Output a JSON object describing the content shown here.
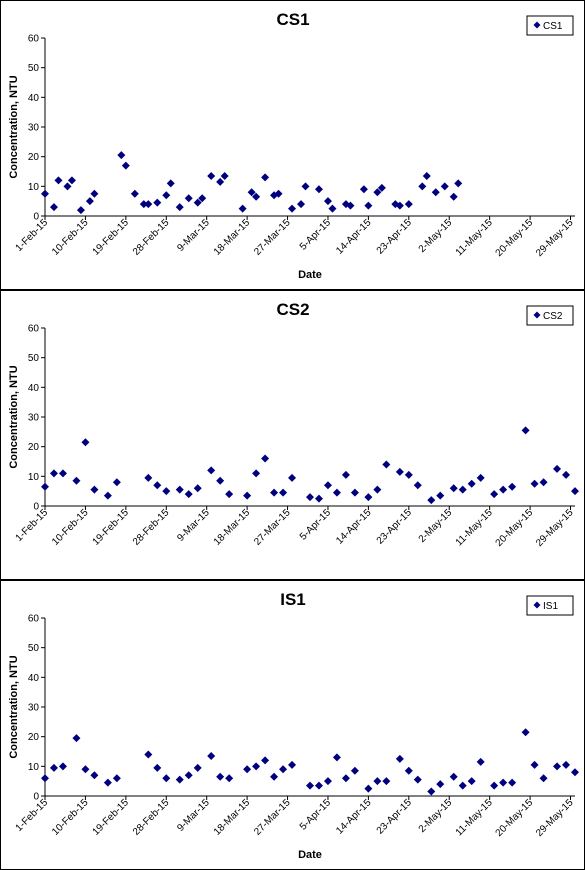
{
  "chart_data": [
    {
      "type": "scatter",
      "title": "CS1",
      "xlabel": "Date",
      "ylabel": "Concentration, NTU",
      "ylim": [
        0,
        60
      ],
      "yticks": [
        0,
        10,
        20,
        30,
        40,
        50,
        60
      ],
      "xlim": [
        "2015-02-01",
        "2015-05-30"
      ],
      "xticks": [
        "1-Feb-15",
        "10-Feb-15",
        "19-Feb-15",
        "28-Feb-15",
        "9-Mar-15",
        "18-Mar-15",
        "27-Mar-15",
        "5-Apr-15",
        "14-Apr-15",
        "23-Apr-15",
        "2-May-15",
        "11-May-15",
        "20-May-15",
        "29-May-15"
      ],
      "grid": false,
      "legend_position": "top-right",
      "marker_color": "#00007f",
      "series": [
        {
          "name": "CS1",
          "points": [
            [
              "2015-02-01",
              7.5
            ],
            [
              "2015-02-03",
              3
            ],
            [
              "2015-02-04",
              12
            ],
            [
              "2015-02-06",
              10
            ],
            [
              "2015-02-07",
              12
            ],
            [
              "2015-02-09",
              2
            ],
            [
              "2015-02-11",
              5
            ],
            [
              "2015-02-12",
              7.5
            ],
            [
              "2015-02-18",
              20.5
            ],
            [
              "2015-02-19",
              17
            ],
            [
              "2015-02-21",
              7.5
            ],
            [
              "2015-02-23",
              4
            ],
            [
              "2015-02-24",
              4
            ],
            [
              "2015-02-26",
              4.5
            ],
            [
              "2015-02-28",
              7
            ],
            [
              "2015-03-01",
              11
            ],
            [
              "2015-03-03",
              3
            ],
            [
              "2015-03-05",
              6
            ],
            [
              "2015-03-07",
              4.5
            ],
            [
              "2015-03-08",
              6
            ],
            [
              "2015-03-10",
              13.5
            ],
            [
              "2015-03-12",
              11.5
            ],
            [
              "2015-03-13",
              13.5
            ],
            [
              "2015-03-17",
              2.5
            ],
            [
              "2015-03-19",
              8
            ],
            [
              "2015-03-20",
              6.5
            ],
            [
              "2015-03-22",
              13
            ],
            [
              "2015-03-24",
              7
            ],
            [
              "2015-03-25",
              7.5
            ],
            [
              "2015-03-28",
              2.5
            ],
            [
              "2015-03-30",
              4
            ],
            [
              "2015-03-31",
              10
            ],
            [
              "2015-04-03",
              9
            ],
            [
              "2015-04-05",
              5
            ],
            [
              "2015-04-06",
              2.5
            ],
            [
              "2015-04-09",
              4
            ],
            [
              "2015-04-10",
              3.5
            ],
            [
              "2015-04-13",
              9
            ],
            [
              "2015-04-14",
              3.5
            ],
            [
              "2015-04-16",
              8
            ],
            [
              "2015-04-17",
              9.5
            ],
            [
              "2015-04-20",
              4
            ],
            [
              "2015-04-21",
              3.5
            ],
            [
              "2015-04-23",
              4
            ],
            [
              "2015-04-26",
              10
            ],
            [
              "2015-04-27",
              13.5
            ],
            [
              "2015-04-29",
              8
            ],
            [
              "2015-05-01",
              10
            ],
            [
              "2015-05-03",
              6.5
            ],
            [
              "2015-05-04",
              11
            ]
          ]
        }
      ]
    },
    {
      "type": "scatter",
      "title": "CS2",
      "xlabel": "",
      "ylabel": "Concentration, NTU",
      "ylim": [
        0,
        60
      ],
      "yticks": [
        0,
        10,
        20,
        30,
        40,
        50,
        60
      ],
      "xlim": [
        "2015-02-01",
        "2015-05-30"
      ],
      "xticks": [
        "1-Feb-15",
        "10-Feb-15",
        "19-Feb-15",
        "28-Feb-15",
        "9-Mar-15",
        "18-Mar-15",
        "27-Mar-15",
        "5-Apr-15",
        "14-Apr-15",
        "23-Apr-15",
        "2-May-15",
        "11-May-15",
        "20-May-15",
        "29-May-15"
      ],
      "grid": false,
      "legend_position": "top-right",
      "marker_color": "#00007f",
      "series": [
        {
          "name": "CS2",
          "points": [
            [
              "2015-02-01",
              6.5
            ],
            [
              "2015-02-03",
              11
            ],
            [
              "2015-02-05",
              11
            ],
            [
              "2015-02-08",
              8.5
            ],
            [
              "2015-02-10",
              21.5
            ],
            [
              "2015-02-12",
              5.5
            ],
            [
              "2015-02-15",
              3.5
            ],
            [
              "2015-02-17",
              8
            ],
            [
              "2015-02-24",
              9.5
            ],
            [
              "2015-02-26",
              7
            ],
            [
              "2015-02-28",
              5
            ],
            [
              "2015-03-03",
              5.5
            ],
            [
              "2015-03-05",
              4
            ],
            [
              "2015-03-07",
              6
            ],
            [
              "2015-03-10",
              12
            ],
            [
              "2015-03-12",
              8.5
            ],
            [
              "2015-03-14",
              4
            ],
            [
              "2015-03-18",
              3.5
            ],
            [
              "2015-03-20",
              11
            ],
            [
              "2015-03-22",
              16
            ],
            [
              "2015-03-24",
              4.5
            ],
            [
              "2015-03-26",
              4.5
            ],
            [
              "2015-03-28",
              9.5
            ],
            [
              "2015-04-01",
              3
            ],
            [
              "2015-04-03",
              2.5
            ],
            [
              "2015-04-05",
              7
            ],
            [
              "2015-04-07",
              4.5
            ],
            [
              "2015-04-09",
              10.5
            ],
            [
              "2015-04-11",
              4.5
            ],
            [
              "2015-04-14",
              3
            ],
            [
              "2015-04-16",
              5.5
            ],
            [
              "2015-04-18",
              14
            ],
            [
              "2015-04-21",
              11.5
            ],
            [
              "2015-04-23",
              10.5
            ],
            [
              "2015-04-25",
              7
            ],
            [
              "2015-04-28",
              2
            ],
            [
              "2015-04-30",
              3.5
            ],
            [
              "2015-05-03",
              6
            ],
            [
              "2015-05-05",
              5.5
            ],
            [
              "2015-05-07",
              7.5
            ],
            [
              "2015-05-09",
              9.5
            ],
            [
              "2015-05-12",
              4
            ],
            [
              "2015-05-14",
              5.5
            ],
            [
              "2015-05-16",
              6.5
            ],
            [
              "2015-05-19",
              25.5
            ],
            [
              "2015-05-21",
              7.5
            ],
            [
              "2015-05-23",
              8
            ],
            [
              "2015-05-26",
              12.5
            ],
            [
              "2015-05-28",
              10.5
            ],
            [
              "2015-05-30",
              5
            ]
          ]
        }
      ]
    },
    {
      "type": "scatter",
      "title": "IS1",
      "xlabel": "Date",
      "ylabel": "Concentration, NTU",
      "ylim": [
        0,
        60
      ],
      "yticks": [
        0,
        10,
        20,
        30,
        40,
        50,
        60
      ],
      "xlim": [
        "2015-02-01",
        "2015-05-30"
      ],
      "xticks": [
        "1-Feb-15",
        "10-Feb-15",
        "19-Feb-15",
        "28-Feb-15",
        "9-Mar-15",
        "18-Mar-15",
        "27-Mar-15",
        "5-Apr-15",
        "14-Apr-15",
        "23-Apr-15",
        "2-May-15",
        "11-May-15",
        "20-May-15",
        "29-May-15"
      ],
      "grid": false,
      "legend_position": "top-right",
      "marker_color": "#00007f",
      "series": [
        {
          "name": "IS1",
          "points": [
            [
              "2015-02-01",
              6
            ],
            [
              "2015-02-03",
              9.5
            ],
            [
              "2015-02-05",
              10
            ],
            [
              "2015-02-08",
              19.5
            ],
            [
              "2015-02-10",
              9
            ],
            [
              "2015-02-12",
              7
            ],
            [
              "2015-02-15",
              4.5
            ],
            [
              "2015-02-17",
              6
            ],
            [
              "2015-02-24",
              14
            ],
            [
              "2015-02-26",
              9.5
            ],
            [
              "2015-02-28",
              6
            ],
            [
              "2015-03-03",
              5.5
            ],
            [
              "2015-03-05",
              7
            ],
            [
              "2015-03-07",
              9.5
            ],
            [
              "2015-03-10",
              13.5
            ],
            [
              "2015-03-12",
              6.5
            ],
            [
              "2015-03-14",
              6
            ],
            [
              "2015-03-18",
              9
            ],
            [
              "2015-03-20",
              10
            ],
            [
              "2015-03-22",
              12
            ],
            [
              "2015-03-24",
              6.5
            ],
            [
              "2015-03-26",
              9
            ],
            [
              "2015-03-28",
              10.5
            ],
            [
              "2015-04-01",
              3.5
            ],
            [
              "2015-04-03",
              3.5
            ],
            [
              "2015-04-05",
              5
            ],
            [
              "2015-04-07",
              13
            ],
            [
              "2015-04-09",
              6
            ],
            [
              "2015-04-11",
              8.5
            ],
            [
              "2015-04-14",
              2.5
            ],
            [
              "2015-04-16",
              5
            ],
            [
              "2015-04-18",
              5
            ],
            [
              "2015-04-21",
              12.5
            ],
            [
              "2015-04-23",
              8.5
            ],
            [
              "2015-04-25",
              5.5
            ],
            [
              "2015-04-28",
              1.5
            ],
            [
              "2015-04-30",
              4
            ],
            [
              "2015-05-03",
              6.5
            ],
            [
              "2015-05-05",
              3.5
            ],
            [
              "2015-05-07",
              5
            ],
            [
              "2015-05-09",
              11.5
            ],
            [
              "2015-05-12",
              3.5
            ],
            [
              "2015-05-14",
              4.5
            ],
            [
              "2015-05-16",
              4.5
            ],
            [
              "2015-05-19",
              21.5
            ],
            [
              "2015-05-21",
              10.5
            ],
            [
              "2015-05-23",
              6
            ],
            [
              "2015-05-26",
              10
            ],
            [
              "2015-05-28",
              10.5
            ],
            [
              "2015-05-30",
              8
            ]
          ]
        }
      ]
    }
  ]
}
